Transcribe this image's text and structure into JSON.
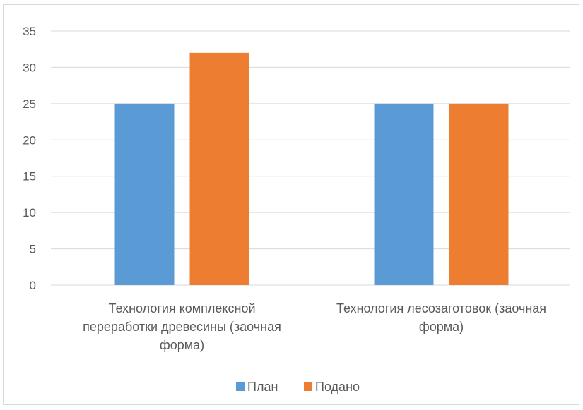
{
  "chart_data": {
    "type": "bar",
    "categories": [
      "Технология комплексной переработки древесины (заочная форма)",
      "Технология лесозаготовок (заочная форма)"
    ],
    "category_lines": [
      [
        "Технология комплексной",
        "переработки древесины (заочная",
        "форма)"
      ],
      [
        "Технология лесозаготовок (заочная",
        "форма)"
      ]
    ],
    "series": [
      {
        "name": "План",
        "values": [
          25,
          25
        ],
        "color": "#5b9bd5"
      },
      {
        "name": "Подано",
        "values": [
          32,
          25
        ],
        "color": "#ed7d31"
      }
    ],
    "ylim": [
      0,
      35
    ],
    "yticks": [
      0,
      5,
      10,
      15,
      20,
      25,
      30,
      35
    ],
    "grid": true,
    "legend_position": "bottom",
    "title": "",
    "xlabel": "",
    "ylabel": ""
  }
}
